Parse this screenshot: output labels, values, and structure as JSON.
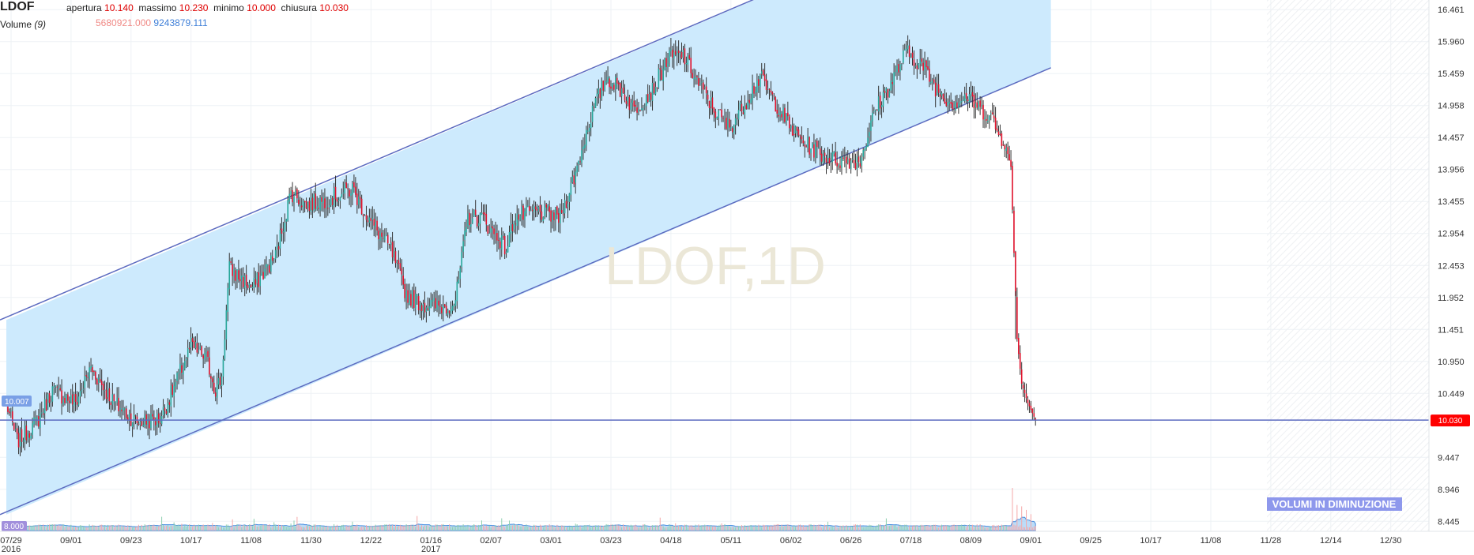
{
  "header": {
    "symbol": "LDOF",
    "labels": {
      "open": "apertura",
      "high": "massimo",
      "low": "minimo",
      "close": "chiusura"
    },
    "values": {
      "open": "10.140",
      "high": "10.230",
      "low": "10.000",
      "close": "10.030"
    },
    "volume_label": "Volume",
    "volume_period": "(9)",
    "volume_value": "5680921.000",
    "volume_ma_value": "9243879.111"
  },
  "watermark": "LDOF,1D",
  "colors": {
    "up": "#26a69a",
    "down": "#e0112b",
    "channel_fill": "#cdeafd",
    "line": "#5c6bc0",
    "volume_area": "#9fcdf5",
    "grid": "#eef2f5",
    "last_price_bg": "#ff0000"
  },
  "chart_data": {
    "type": "candlestick",
    "y_axis": {
      "ticks": [
        "16.461",
        "15.960",
        "15.459",
        "14.958",
        "14.457",
        "13.956",
        "13.455",
        "12.954",
        "12.453",
        "11.952",
        "11.451",
        "10.950",
        "10.449",
        "9.447",
        "8.946",
        "8.445"
      ],
      "range": [
        8.37,
        16.52
      ]
    },
    "x_axis": {
      "ticks": [
        "07/29",
        "09/01",
        "09/23",
        "10/17",
        "11/08",
        "11/30",
        "12/22",
        "01/16",
        "02/07",
        "03/01",
        "03/23",
        "04/18",
        "05/11",
        "06/02",
        "06/26",
        "07/18",
        "08/09",
        "09/01",
        "09/25",
        "10/17",
        "11/08",
        "11/28",
        "12/14",
        "12/30"
      ],
      "year_labels": [
        {
          "at": "07/29",
          "year": "2016"
        },
        {
          "at": "01/16",
          "year": "2017"
        }
      ]
    },
    "price_path": [
      [
        0,
        10.3
      ],
      [
        7,
        9.7
      ],
      [
        20,
        10.0
      ],
      [
        30,
        10.5
      ],
      [
        45,
        10.3
      ],
      [
        55,
        10.85
      ],
      [
        70,
        10.3
      ],
      [
        85,
        10.0
      ],
      [
        100,
        10.05
      ],
      [
        110,
        10.6
      ],
      [
        120,
        11.2
      ],
      [
        130,
        11.0
      ],
      [
        136,
        10.5
      ],
      [
        140,
        10.7
      ],
      [
        145,
        12.4
      ],
      [
        160,
        12.1
      ],
      [
        175,
        12.6
      ],
      [
        185,
        13.6
      ],
      [
        195,
        13.4
      ],
      [
        210,
        13.5
      ],
      [
        225,
        13.65
      ],
      [
        235,
        13.2
      ],
      [
        250,
        12.7
      ],
      [
        260,
        12.0
      ],
      [
        270,
        11.85
      ],
      [
        285,
        11.8
      ],
      [
        292,
        11.9
      ],
      [
        300,
        13.2
      ],
      [
        310,
        13.2
      ],
      [
        315,
        13.0
      ],
      [
        320,
        12.9
      ],
      [
        325,
        12.7
      ],
      [
        330,
        13.2
      ],
      [
        345,
        13.3
      ],
      [
        360,
        13.2
      ],
      [
        370,
        13.9
      ],
      [
        380,
        14.8
      ],
      [
        390,
        15.4
      ],
      [
        400,
        15.2
      ],
      [
        408,
        14.9
      ],
      [
        420,
        15.2
      ],
      [
        430,
        15.7
      ],
      [
        440,
        15.75
      ],
      [
        450,
        15.3
      ],
      [
        460,
        14.9
      ],
      [
        470,
        14.6
      ],
      [
        480,
        15.0
      ],
      [
        490,
        15.4
      ],
      [
        500,
        15.0
      ],
      [
        510,
        14.6
      ],
      [
        520,
        14.35
      ],
      [
        530,
        14.2
      ],
      [
        540,
        14.1
      ],
      [
        548,
        14.1
      ],
      [
        555,
        14.1
      ],
      [
        565,
        14.9
      ],
      [
        575,
        15.3
      ],
      [
        585,
        15.8
      ],
      [
        595,
        15.6
      ],
      [
        605,
        15.2
      ],
      [
        615,
        15.0
      ],
      [
        625,
        15.1
      ],
      [
        633,
        14.9
      ],
      [
        640,
        14.8
      ],
      [
        645,
        14.5
      ],
      [
        649,
        14.4
      ],
      [
        653,
        14.0
      ],
      [
        657,
        11.3
      ],
      [
        660,
        10.6
      ],
      [
        664,
        10.3
      ],
      [
        669,
        10.03
      ]
    ],
    "volume_highlights": [
      [
        654,
        6.0
      ],
      [
        657,
        3.6
      ],
      [
        660,
        3.4
      ],
      [
        663,
        2.9
      ],
      [
        666,
        2.3
      ]
    ],
    "channel": {
      "lower_line": {
        "start": [
          0,
          8.55
        ],
        "end": [
          679,
          15.55
        ]
      },
      "width": 3.05,
      "visible_until_index": 679
    },
    "horizontal_line": 10.03,
    "ma_label": "10.007",
    "volume_axis_label": "8.000",
    "last_price_label": "10.030",
    "annotation": "VOLUMI IN DIMINUZIONE",
    "total_bars": 669
  }
}
